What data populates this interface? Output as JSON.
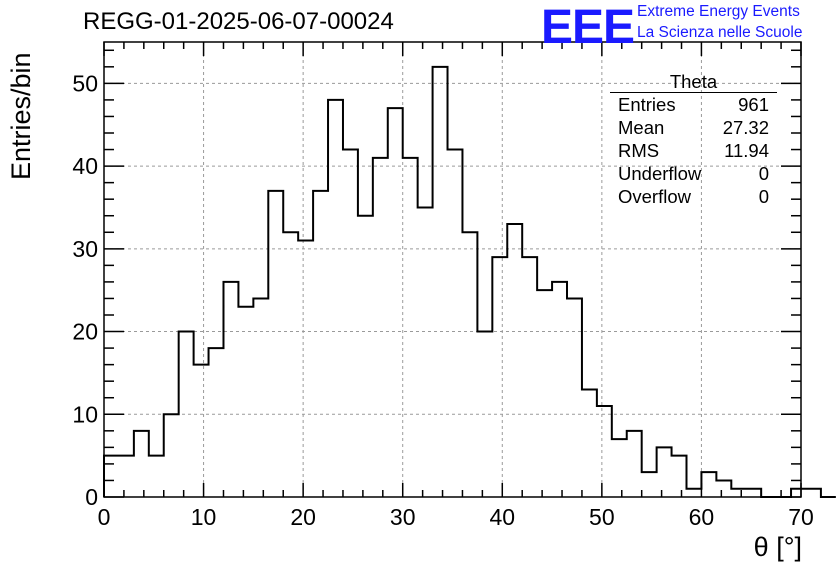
{
  "title": "REGG-01-2025-06-07-00024",
  "logo": {
    "text": "EEE",
    "line1": "Extreme Energy Events",
    "line2": "La Scienza nelle Scuole",
    "color": "#1a1aff"
  },
  "stats_box": {
    "name": "Theta",
    "rows": [
      {
        "label": "Entries",
        "value": "961"
      },
      {
        "label": "Mean",
        "value": "27.32"
      },
      {
        "label": "RMS",
        "value": "11.94"
      },
      {
        "label": "Underflow",
        "value": "0"
      },
      {
        "label": "Overflow",
        "value": "0"
      }
    ]
  },
  "chart_data": {
    "type": "bar",
    "histogram": true,
    "xlabel": "θ [°]",
    "ylabel": "Entries/bin",
    "xlim": [
      0,
      70
    ],
    "ylim": [
      0,
      55
    ],
    "bin_width": 1.5,
    "bin_start": 0,
    "values": [
      5,
      5,
      8,
      5,
      10,
      20,
      16,
      18,
      26,
      23,
      24,
      37,
      32,
      31,
      37,
      48,
      42,
      34,
      41,
      47,
      41,
      35,
      52,
      42,
      32,
      20,
      29,
      33,
      29,
      25,
      26,
      24,
      13,
      11,
      7,
      8,
      3,
      6,
      5,
      1,
      3,
      2,
      1,
      1,
      0,
      0,
      1,
      1,
      0
    ],
    "xticks": [
      "0",
      "10",
      "20",
      "30",
      "40",
      "50",
      "60",
      "70"
    ],
    "yticks": [
      "0",
      "10",
      "20",
      "30",
      "40",
      "50"
    ],
    "grid": true,
    "line_color": "#000000"
  }
}
